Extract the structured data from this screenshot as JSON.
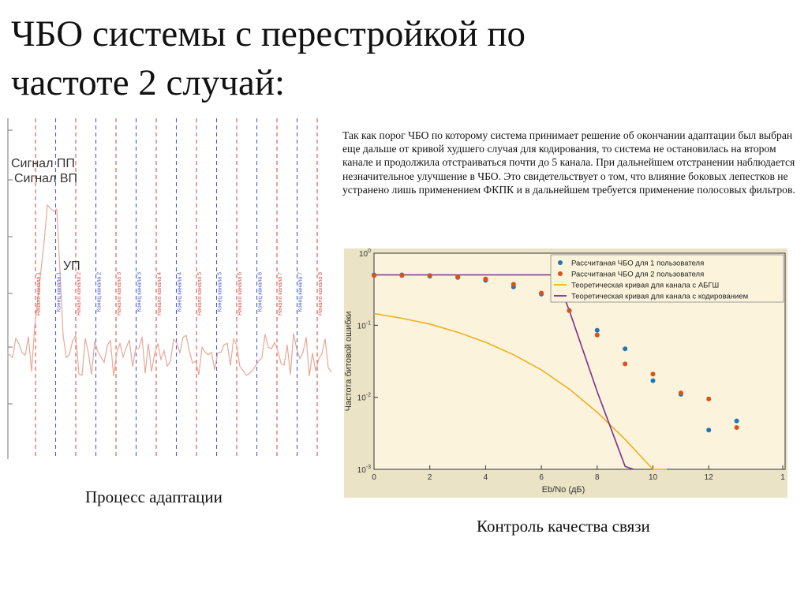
{
  "slide": {
    "title_line1": "ЧБО системы с перестройкой по",
    "title_line2": "частоте 2 случай:",
    "paragraph": "Так как порог ЧБО по которому система принимает  решение об окончании адаптации был выбран  еще дальше от кривой худшего случая для кодирования, то система не остановилась на втором канале и продолжила отстраиваться почти до 5 канала. При дальнейшем отстранении наблюдается незначительное улучшение в ЧБО. Это свидетельствует о том, что влияние боковых лепестков не устранено лишь применением ФКПК и в дальнейшем требуется применение полосовых фильтров.",
    "caption_left": "Процесс адаптации",
    "caption_right": "Контроль качества связи"
  },
  "adaptation_figure": {
    "legend": [
      "Сигнал ПП",
      "Сигнал ВП"
    ],
    "up_label": "УП",
    "marker_labels": [
      {
        "text": "Начало канала 1",
        "color": "#d9534a"
      },
      {
        "text": "Конец канала 1",
        "color": "#4a5bd9"
      },
      {
        "text": "Начало канала 2",
        "color": "#d9534a"
      },
      {
        "text": "Конец канала 2",
        "color": "#4a5bd9"
      },
      {
        "text": "Начало канала 3",
        "color": "#d9534a"
      },
      {
        "text": "Конец канала 3",
        "color": "#4a5bd9"
      },
      {
        "text": "Начало канала 4",
        "color": "#d9534a"
      },
      {
        "text": "Конец канала 4",
        "color": "#4a5bd9"
      },
      {
        "text": "Начало канала 5",
        "color": "#d9534a"
      },
      {
        "text": "Конец канала 5",
        "color": "#4a5bd9"
      },
      {
        "text": "Начало канала 6",
        "color": "#d9534a"
      },
      {
        "text": "Конец канала 6",
        "color": "#4a5bd9"
      },
      {
        "text": "Начало канала 7",
        "color": "#d9534a"
      },
      {
        "text": "Конец канала 7",
        "color": "#4a5bd9"
      },
      {
        "text": "Начало канала 8",
        "color": "#d9534a"
      }
    ]
  },
  "chart_data": {
    "type": "scatter",
    "xlabel": "Eb/No (дБ)",
    "ylabel": "Частота битовой ошибки",
    "yscale": "log",
    "xlim": [
      0,
      14
    ],
    "ylim": [
      0.001,
      1
    ],
    "x_ticks": [
      "0",
      "2",
      "4",
      "6",
      "8",
      "10",
      "12",
      "1"
    ],
    "y_ticks": [
      {
        "base": "10",
        "exp": "0",
        "value": 1
      },
      {
        "base": "10",
        "exp": "-1",
        "value": 0.1
      },
      {
        "base": "10",
        "exp": "-2",
        "value": 0.01
      },
      {
        "base": "10",
        "exp": "-3",
        "value": 0.001
      }
    ],
    "legend_position": "top-right",
    "grid": false,
    "series": [
      {
        "name": "Рассчитаная ЧБО для 1 пользователя",
        "kind": "points",
        "color": "#1f77b4",
        "x": [
          0,
          1,
          2,
          3,
          4,
          5,
          6,
          7,
          8,
          9,
          10,
          11,
          12,
          13
        ],
        "y": [
          0.5,
          0.5,
          0.48,
          0.46,
          0.42,
          0.34,
          0.27,
          0.16,
          0.085,
          0.047,
          0.017,
          0.011,
          0.0035,
          0.0047
        ]
      },
      {
        "name": "Рассчитаная ЧБО для 2 пользователя",
        "kind": "points",
        "color": "#d95319",
        "x": [
          0,
          1,
          2,
          3,
          4,
          5,
          6,
          7,
          8,
          9,
          10,
          11,
          12,
          13
        ],
        "y": [
          0.49,
          0.49,
          0.49,
          0.47,
          0.44,
          0.37,
          0.28,
          0.16,
          0.073,
          0.029,
          0.021,
          0.0115,
          0.0095,
          0.0038
        ]
      },
      {
        "name": "Теоретическая кривая для канала с АБГШ",
        "kind": "line",
        "color": "#edb120",
        "x": [
          0,
          1,
          2,
          3,
          4,
          5,
          6,
          7,
          8,
          9,
          10,
          10.5
        ],
        "y": [
          0.145,
          0.125,
          0.104,
          0.08,
          0.058,
          0.039,
          0.024,
          0.013,
          0.0062,
          0.0026,
          0.00095,
          0.0006
        ]
      },
      {
        "name": "Теоретическая кривая для канала с кодированием",
        "kind": "line",
        "color": "#7e2f8e",
        "x": [
          0,
          6.5,
          7,
          8,
          9,
          9.3
        ],
        "y": [
          0.5,
          0.5,
          0.16,
          0.012,
          0.0011,
          0.0006
        ]
      }
    ]
  }
}
